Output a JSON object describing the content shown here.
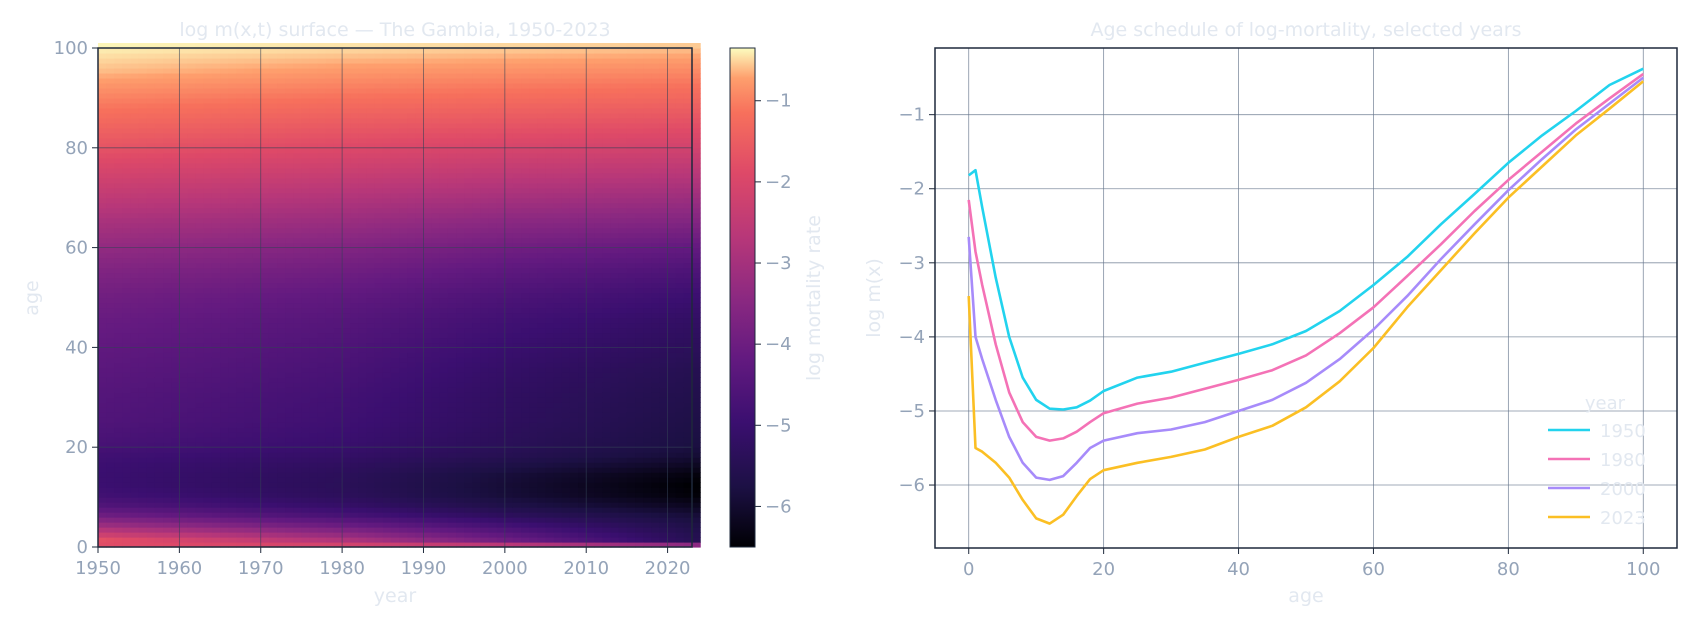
{
  "chart_data": [
    {
      "type": "heatmap",
      "title": "log m(x,t) surface — The Gambia, 1950-2023",
      "xlabel": "year",
      "ylabel": "age",
      "xlim": [
        1950,
        2023
      ],
      "ylim": [
        0,
        100
      ],
      "x_ticks": [
        "1950",
        "1960",
        "1970",
        "1980",
        "1990",
        "2000",
        "2010",
        "2020"
      ],
      "y_ticks": [
        "0",
        "20",
        "40",
        "60",
        "80",
        "100"
      ],
      "grid": true,
      "colormap": "magma",
      "colorbar": {
        "label": "log mortality rate",
        "range": [
          -6.5,
          -0.35
        ],
        "ticks": [
          "−1",
          "−2",
          "−3",
          "−4",
          "−5",
          "−6"
        ]
      }
    },
    {
      "type": "line",
      "title": "Age schedule of log-mortality, selected years",
      "xlabel": "age",
      "ylabel": "log m(x)",
      "xlim": [
        -5,
        105
      ],
      "ylim": [
        -6.85,
        -0.1
      ],
      "x_ticks": [
        "0",
        "20",
        "40",
        "60",
        "80",
        "100"
      ],
      "y_ticks": [
        "−1",
        "−2",
        "−3",
        "−4",
        "−5",
        "−6"
      ],
      "grid": true,
      "legend": {
        "title": "year",
        "position": "bottom-right"
      },
      "x": [
        0,
        1,
        2,
        4,
        6,
        8,
        10,
        12,
        14,
        16,
        18,
        20,
        25,
        30,
        35,
        40,
        45,
        50,
        55,
        60,
        65,
        70,
        75,
        80,
        85,
        90,
        95,
        100
      ],
      "series": [
        {
          "name": "1950",
          "color": "#22d3ee",
          "values": [
            -1.82,
            -1.75,
            -2.25,
            -3.2,
            -4.0,
            -4.55,
            -4.85,
            -4.97,
            -4.98,
            -4.95,
            -4.86,
            -4.73,
            -4.55,
            -4.47,
            -4.35,
            -4.23,
            -4.1,
            -3.92,
            -3.65,
            -3.3,
            -2.92,
            -2.48,
            -2.07,
            -1.65,
            -1.28,
            -0.95,
            -0.6,
            -0.38
          ]
        },
        {
          "name": "1980",
          "color": "#f472b6",
          "values": [
            -2.15,
            -2.85,
            -3.3,
            -4.1,
            -4.75,
            -5.15,
            -5.35,
            -5.4,
            -5.37,
            -5.28,
            -5.15,
            -5.03,
            -4.9,
            -4.82,
            -4.7,
            -4.58,
            -4.45,
            -4.25,
            -3.95,
            -3.6,
            -3.18,
            -2.75,
            -2.3,
            -1.88,
            -1.5,
            -1.12,
            -0.78,
            -0.45
          ]
        },
        {
          "name": "2000",
          "color": "#a78bfa",
          "values": [
            -2.65,
            -4.0,
            -4.3,
            -4.85,
            -5.35,
            -5.7,
            -5.9,
            -5.93,
            -5.88,
            -5.7,
            -5.5,
            -5.4,
            -5.3,
            -5.25,
            -5.15,
            -5.0,
            -4.85,
            -4.62,
            -4.3,
            -3.9,
            -3.45,
            -2.95,
            -2.48,
            -2.02,
            -1.6,
            -1.2,
            -0.85,
            -0.5
          ]
        },
        {
          "name": "2023",
          "color": "#fbbf24",
          "values": [
            -3.45,
            -5.5,
            -5.55,
            -5.7,
            -5.9,
            -6.2,
            -6.45,
            -6.52,
            -6.4,
            -6.15,
            -5.92,
            -5.8,
            -5.7,
            -5.62,
            -5.52,
            -5.35,
            -5.2,
            -4.95,
            -4.6,
            -4.15,
            -3.6,
            -3.1,
            -2.6,
            -2.12,
            -1.7,
            -1.28,
            -0.92,
            -0.55
          ]
        }
      ]
    }
  ]
}
